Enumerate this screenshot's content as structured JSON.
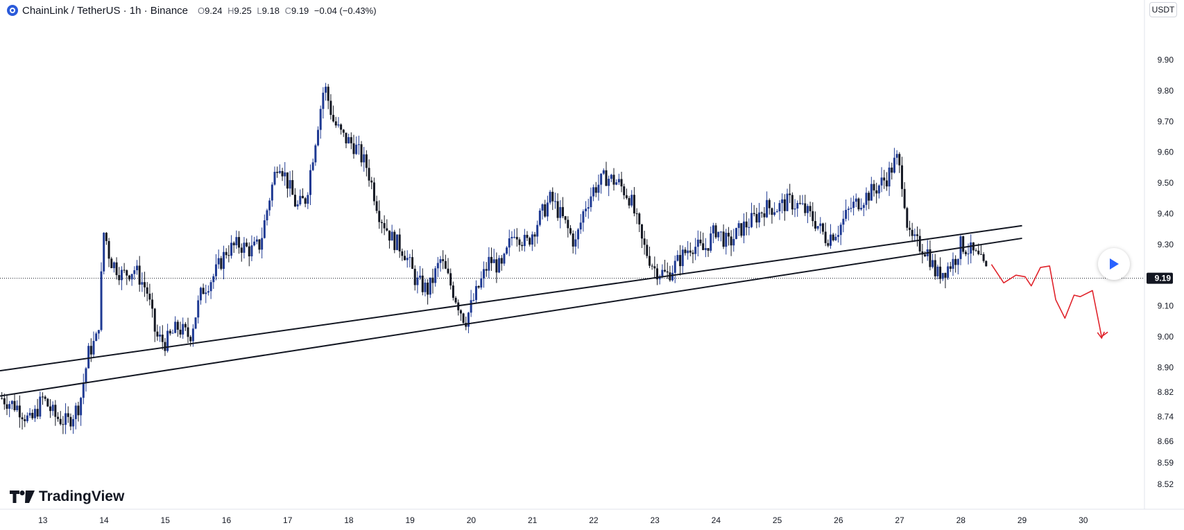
{
  "header": {
    "symbol_title": "ChainLink / TetherUS · 1h · Binance",
    "ohlc": {
      "o_label": "O",
      "o": "9.24",
      "h_label": "H",
      "h": "9.25",
      "l_label": "L",
      "l": "9.18",
      "c_label": "C",
      "c": "9.19",
      "change": "−0.04 (−0.43%)"
    }
  },
  "currency_badge": "USDT",
  "logo_text": "TradingView",
  "colors": {
    "up": "#1f3a93",
    "down": "#131722",
    "trendline": "#131722",
    "forecast": "#e0232b",
    "current_price_bg": "#131722",
    "accent": "#2962ff"
  },
  "chart_data": {
    "type": "candlestick",
    "ylim": [
      8.45,
      10.05
    ],
    "xlim": [
      12.3,
      31.0
    ],
    "y_ticks": [
      {
        "value": 9.9,
        "label": "9.90"
      },
      {
        "value": 9.8,
        "label": "9.80"
      },
      {
        "value": 9.7,
        "label": "9.70"
      },
      {
        "value": 9.6,
        "label": "9.60"
      },
      {
        "value": 9.5,
        "label": "9.50"
      },
      {
        "value": 9.4,
        "label": "9.40"
      },
      {
        "value": 9.3,
        "label": "9.30"
      },
      {
        "value": 9.1,
        "label": "9.10"
      },
      {
        "value": 9.0,
        "label": "9.00"
      },
      {
        "value": 8.9,
        "label": "8.90"
      },
      {
        "value": 8.82,
        "label": "8.82"
      },
      {
        "value": 8.74,
        "label": "8.74"
      },
      {
        "value": 8.66,
        "label": "8.66"
      },
      {
        "value": 8.59,
        "label": "8.59"
      },
      {
        "value": 8.52,
        "label": "8.52"
      }
    ],
    "x_ticks": [
      {
        "value": 13,
        "label": "13"
      },
      {
        "value": 14,
        "label": "14"
      },
      {
        "value": 15,
        "label": "15"
      },
      {
        "value": 16,
        "label": "16"
      },
      {
        "value": 17,
        "label": "17"
      },
      {
        "value": 18,
        "label": "18"
      },
      {
        "value": 19,
        "label": "19"
      },
      {
        "value": 20,
        "label": "20"
      },
      {
        "value": 21,
        "label": "21"
      },
      {
        "value": 22,
        "label": "22"
      },
      {
        "value": 23,
        "label": "23"
      },
      {
        "value": 24,
        "label": "24"
      },
      {
        "value": 25,
        "label": "25"
      },
      {
        "value": 26,
        "label": "26"
      },
      {
        "value": 27,
        "label": "27"
      },
      {
        "value": 28,
        "label": "28"
      },
      {
        "value": 29,
        "label": "29"
      },
      {
        "value": 30,
        "label": "30"
      }
    ],
    "current_price": {
      "value": 9.19,
      "label": "9.19"
    },
    "close_path": [
      [
        12.33,
        8.8
      ],
      [
        12.6,
        8.77
      ],
      [
        12.8,
        8.72
      ],
      [
        13.0,
        8.8
      ],
      [
        13.2,
        8.74
      ],
      [
        13.4,
        8.72
      ],
      [
        13.6,
        8.78
      ],
      [
        13.75,
        8.95
      ],
      [
        13.9,
        9.0
      ],
      [
        14.0,
        9.35
      ],
      [
        14.1,
        9.25
      ],
      [
        14.3,
        9.2
      ],
      [
        14.5,
        9.22
      ],
      [
        14.7,
        9.15
      ],
      [
        14.85,
        9.0
      ],
      [
        15.0,
        8.98
      ],
      [
        15.2,
        9.03
      ],
      [
        15.4,
        9.0
      ],
      [
        15.6,
        9.15
      ],
      [
        15.8,
        9.2
      ],
      [
        16.0,
        9.28
      ],
      [
        16.2,
        9.3
      ],
      [
        16.4,
        9.28
      ],
      [
        16.55,
        9.3
      ],
      [
        16.7,
        9.45
      ],
      [
        16.85,
        9.58
      ],
      [
        17.0,
        9.5
      ],
      [
        17.15,
        9.42
      ],
      [
        17.3,
        9.45
      ],
      [
        17.5,
        9.7
      ],
      [
        17.6,
        9.82
      ],
      [
        17.75,
        9.7
      ],
      [
        17.9,
        9.65
      ],
      [
        18.1,
        9.62
      ],
      [
        18.3,
        9.55
      ],
      [
        18.5,
        9.4
      ],
      [
        18.7,
        9.32
      ],
      [
        18.9,
        9.28
      ],
      [
        19.1,
        9.18
      ],
      [
        19.3,
        9.15
      ],
      [
        19.5,
        9.25
      ],
      [
        19.7,
        9.15
      ],
      [
        19.9,
        9.05
      ],
      [
        20.1,
        9.15
      ],
      [
        20.3,
        9.25
      ],
      [
        20.5,
        9.22
      ],
      [
        20.7,
        9.35
      ],
      [
        20.9,
        9.3
      ],
      [
        21.1,
        9.38
      ],
      [
        21.3,
        9.45
      ],
      [
        21.5,
        9.38
      ],
      [
        21.7,
        9.3
      ],
      [
        21.85,
        9.42
      ],
      [
        22.0,
        9.48
      ],
      [
        22.2,
        9.52
      ],
      [
        22.4,
        9.5
      ],
      [
        22.6,
        9.45
      ],
      [
        22.8,
        9.3
      ],
      [
        23.0,
        9.22
      ],
      [
        23.2,
        9.2
      ],
      [
        23.4,
        9.25
      ],
      [
        23.6,
        9.3
      ],
      [
        23.8,
        9.28
      ],
      [
        24.0,
        9.35
      ],
      [
        24.2,
        9.3
      ],
      [
        24.4,
        9.35
      ],
      [
        24.6,
        9.38
      ],
      [
        24.8,
        9.42
      ],
      [
        25.0,
        9.42
      ],
      [
        25.2,
        9.44
      ],
      [
        25.4,
        9.42
      ],
      [
        25.6,
        9.38
      ],
      [
        25.8,
        9.32
      ],
      [
        26.0,
        9.35
      ],
      [
        26.2,
        9.42
      ],
      [
        26.4,
        9.45
      ],
      [
        26.6,
        9.48
      ],
      [
        26.8,
        9.52
      ],
      [
        26.95,
        9.58
      ],
      [
        27.05,
        9.5
      ],
      [
        27.15,
        9.32
      ],
      [
        27.3,
        9.3
      ],
      [
        27.45,
        9.28
      ],
      [
        27.6,
        9.2
      ],
      [
        27.75,
        9.22
      ],
      [
        27.9,
        9.25
      ],
      [
        28.0,
        9.3
      ],
      [
        28.15,
        9.28
      ],
      [
        28.3,
        9.25
      ],
      [
        28.45,
        9.2
      ]
    ],
    "trendlines": [
      {
        "x1": 12.3,
        "y1": 8.889,
        "x2": 29.0,
        "y2": 9.361
      },
      {
        "x1": 12.3,
        "y1": 8.807,
        "x2": 29.0,
        "y2": 9.32
      }
    ],
    "forecast_path": [
      [
        28.5,
        9.235
      ],
      [
        28.7,
        9.175
      ],
      [
        28.9,
        9.2
      ],
      [
        29.05,
        9.195
      ],
      [
        29.15,
        9.165
      ],
      [
        29.3,
        9.225
      ],
      [
        29.45,
        9.23
      ],
      [
        29.55,
        9.12
      ],
      [
        29.7,
        9.06
      ],
      [
        29.85,
        9.135
      ],
      [
        29.95,
        9.13
      ],
      [
        30.15,
        9.15
      ],
      [
        30.3,
        9.0
      ],
      [
        30.4,
        9.015
      ]
    ]
  }
}
